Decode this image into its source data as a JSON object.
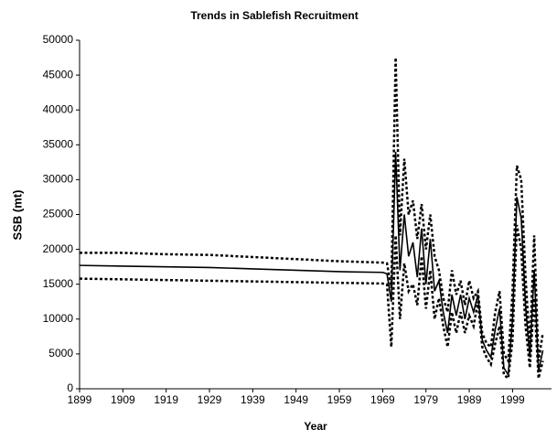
{
  "chart_data": {
    "type": "line",
    "title": "Trends in Sablefish Recruitment",
    "x_label": "Year",
    "y_label": "SSB (mt)",
    "x": [
      1899,
      1909,
      1919,
      1929,
      1939,
      1949,
      1959,
      1969,
      1970,
      1971,
      1972,
      1973,
      1974,
      1975,
      1976,
      1977,
      1978,
      1979,
      1980,
      1981,
      1982,
      1983,
      1984,
      1985,
      1986,
      1987,
      1988,
      1989,
      1990,
      1991,
      1992,
      1993,
      1994,
      1995,
      1996,
      1997,
      1998,
      1999,
      2000,
      2001,
      2002,
      2003,
      2004,
      2005,
      2006
    ],
    "series": [
      {
        "color": "#000000",
        "style": "solid",
        "values": [
          17700,
          17600,
          17500,
          17400,
          17200,
          17000,
          16800,
          16700,
          16500,
          12500,
          34000,
          17000,
          25000,
          19000,
          21000,
          16000,
          23000,
          15000,
          21500,
          14000,
          15500,
          11000,
          8000,
          13500,
          10500,
          13500,
          10000,
          13000,
          11000,
          13500,
          7000,
          5500,
          4500,
          8500,
          11500,
          3000,
          2000,
          10000,
          27500,
          24500,
          12000,
          4500,
          17000,
          2500,
          5500
        ]
      },
      {
        "color": "#000000",
        "style": "dotted",
        "values": [
          19500,
          19500,
          19300,
          19200,
          18900,
          18600,
          18300,
          18100,
          18000,
          14500,
          47500,
          22000,
          33000,
          25000,
          27000,
          21500,
          26500,
          20000,
          25000,
          19000,
          17000,
          13000,
          11000,
          17000,
          13500,
          15500,
          12000,
          15500,
          13000,
          14000,
          8000,
          6500,
          6000,
          11000,
          14000,
          5000,
          4000,
          14000,
          32000,
          30000,
          16000,
          6000,
          22000,
          4000,
          8000
        ]
      },
      {
        "color": "#000000",
        "style": "dotted",
        "values": [
          15800,
          15700,
          15600,
          15500,
          15400,
          15300,
          15200,
          15100,
          15000,
          6000,
          22000,
          10000,
          18000,
          14000,
          15000,
          12000,
          19000,
          11500,
          17000,
          10000,
          13000,
          9000,
          6000,
          11000,
          8000,
          11000,
          8000,
          10500,
          9000,
          12500,
          6000,
          4500,
          3500,
          6500,
          9000,
          2000,
          1500,
          7000,
          23500,
          20000,
          9000,
          3000,
          13000,
          1500,
          4000
        ]
      }
    ],
    "xlim": [
      1899,
      2008
    ],
    "xticks": [
      1899,
      1909,
      1919,
      1929,
      1939,
      1949,
      1959,
      1969,
      1979,
      1989,
      1999
    ],
    "ylim": [
      0,
      50000
    ],
    "yticks": [
      0,
      5000,
      10000,
      15000,
      20000,
      25000,
      30000,
      35000,
      40000,
      45000,
      50000
    ],
    "grid": false
  }
}
